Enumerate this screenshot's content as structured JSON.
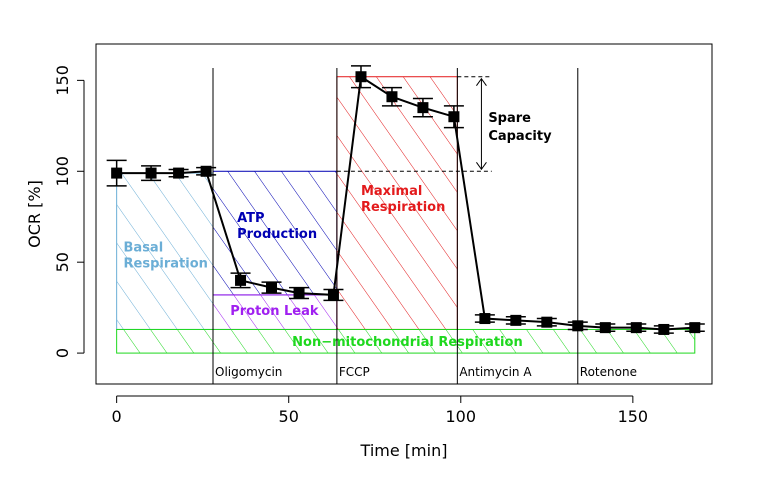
{
  "chart_data": {
    "type": "line",
    "title": "",
    "xlabel": "Time [min]",
    "ylabel": "OCR [%]",
    "xlim": [
      -6,
      173
    ],
    "ylim": [
      -17,
      170
    ],
    "xticks": [
      0,
      50,
      100,
      150
    ],
    "yticks": [
      0,
      50,
      100,
      150
    ],
    "grid": false,
    "legend": "none",
    "series": [
      {
        "x": [
          0,
          10,
          18,
          26,
          36,
          45,
          53,
          63,
          71,
          80,
          89,
          98,
          107,
          116,
          125,
          134,
          142,
          151,
          159,
          168
        ],
        "y": [
          99,
          99,
          99,
          100,
          40,
          36,
          33,
          32,
          152,
          141,
          135,
          130,
          19,
          18,
          17,
          15,
          14,
          14,
          13,
          14
        ],
        "err": [
          7,
          4,
          2,
          2,
          4,
          3,
          3,
          3,
          6,
          5,
          5,
          6,
          2,
          2,
          2,
          2,
          2,
          2,
          2,
          2
        ],
        "color": "#000000"
      }
    ],
    "injections": [
      {
        "x": 28,
        "label": "Oligomycin"
      },
      {
        "x": 64,
        "label": "FCCP"
      },
      {
        "x": 99,
        "label": "Antimycin A"
      },
      {
        "x": 134,
        "label": "Rotenone"
      }
    ],
    "regions": [
      {
        "label_lines": [
          "Basal",
          "Respiration"
        ],
        "color": "#6baed6",
        "x": [
          0,
          28
        ],
        "y": [
          13,
          99
        ],
        "label_at": [
          2,
          56
        ]
      },
      {
        "label_lines": [
          "ATP",
          "Production"
        ],
        "color": "#0000b3",
        "x": [
          28,
          64
        ],
        "y": [
          32,
          100
        ],
        "label_at": [
          35,
          72
        ]
      },
      {
        "label_lines": [
          "Proton Leak"
        ],
        "color": "#a020f0",
        "x": [
          28,
          64
        ],
        "y": [
          13,
          32
        ],
        "label_at": [
          33,
          21
        ]
      },
      {
        "label_lines": [
          "Maximal",
          "Respiration"
        ],
        "color": "#e31a1c",
        "x": [
          64,
          99
        ],
        "y": [
          13,
          152
        ],
        "label_at": [
          71,
          87
        ]
      },
      {
        "label_lines": [
          "Non−mitochondrial  Respiration"
        ],
        "color": "#1ed81e",
        "x": [
          0,
          168
        ],
        "y": [
          0,
          13
        ],
        "label_at": [
          51,
          4
        ]
      }
    ],
    "annotation": {
      "label_lines": [
        "Spare",
        "Capacity"
      ],
      "x": 106,
      "y_range": [
        100,
        152
      ],
      "label_at": [
        108,
        127
      ]
    }
  }
}
